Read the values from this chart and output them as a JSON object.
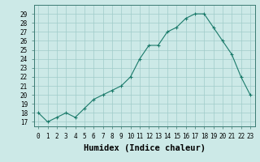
{
  "xlabel": "Humidex (Indice chaleur)",
  "ylabel": "",
  "x_values": [
    0,
    1,
    2,
    3,
    4,
    5,
    6,
    7,
    8,
    9,
    10,
    11,
    12,
    13,
    14,
    15,
    16,
    17,
    18,
    19,
    20,
    21,
    22,
    23
  ],
  "y_values": [
    18,
    17,
    17.5,
    18,
    17.5,
    18.5,
    19.5,
    20,
    20.5,
    21,
    22,
    24,
    25.5,
    25.5,
    27,
    27.5,
    28.5,
    29,
    29,
    27.5,
    26,
    24.5,
    22,
    20
  ],
  "ylim": [
    16.5,
    30
  ],
  "xlim": [
    -0.5,
    23.5
  ],
  "yticks": [
    17,
    18,
    19,
    20,
    21,
    22,
    23,
    24,
    25,
    26,
    27,
    28,
    29
  ],
  "xticks": [
    0,
    1,
    2,
    3,
    4,
    5,
    6,
    7,
    8,
    9,
    10,
    11,
    12,
    13,
    14,
    15,
    16,
    17,
    18,
    19,
    20,
    21,
    22,
    23
  ],
  "line_color": "#1a7a6a",
  "marker_color": "#1a7a6a",
  "bg_color": "#cce9e7",
  "grid_color": "#a0ccc9",
  "tick_fontsize": 5.5,
  "xlabel_fontsize": 7.5
}
